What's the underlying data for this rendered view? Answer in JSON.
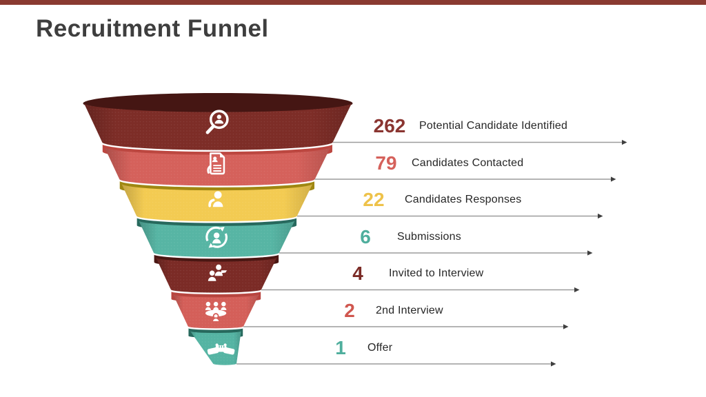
{
  "slide": {
    "title": "Recruitment Funnel",
    "title_color": "#3e3e3e",
    "accent_bar_color": "#8a3a31",
    "background_color": "#ffffff"
  },
  "chart_data": {
    "type": "funnel",
    "title": "Recruitment Funnel",
    "direction": "widest-at-top",
    "label_color": "#262626",
    "connector_color": "#9b9b9b",
    "connector_arrowhead_color": "#3f3f3f",
    "stages": [
      {
        "value": 262,
        "label": "Potential Candidate Identified",
        "icon": "search-candidate-icon",
        "color": "#7d2d27",
        "rim_color": "#451613",
        "value_color": "#8a3531"
      },
      {
        "value": 79,
        "label": "Candidates Contacted",
        "icon": "resume-contact-icon",
        "color": "#d5615b",
        "rim_color": "#bc4740",
        "value_color": "#d5615b"
      },
      {
        "value": 22,
        "label": "Candidates Responses",
        "icon": "candidate-icon",
        "color": "#f3cb52",
        "rim_color": "#9f8712",
        "value_color": "#eec24a"
      },
      {
        "value": 6,
        "label": "Submissions",
        "icon": "sync-candidate-icon",
        "color": "#57b5a4",
        "rim_color": "#27695d",
        "value_color": "#4fae9d"
      },
      {
        "value": 4,
        "label": "Invited to Interview",
        "icon": "interview-icon",
        "color": "#7b2b26",
        "rim_color": "#4a1713",
        "value_color": "#7b2b26"
      },
      {
        "value": 2,
        "label": "2nd Interview",
        "icon": "meeting-icon",
        "color": "#d45f59",
        "rim_color": "#b8453f",
        "value_color": "#d0574f"
      },
      {
        "value": 1,
        "label": "Offer",
        "icon": "handshake-icon",
        "color": "#55b4a3",
        "rim_color": "#27695d",
        "value_color": "#4fae9d"
      }
    ]
  }
}
